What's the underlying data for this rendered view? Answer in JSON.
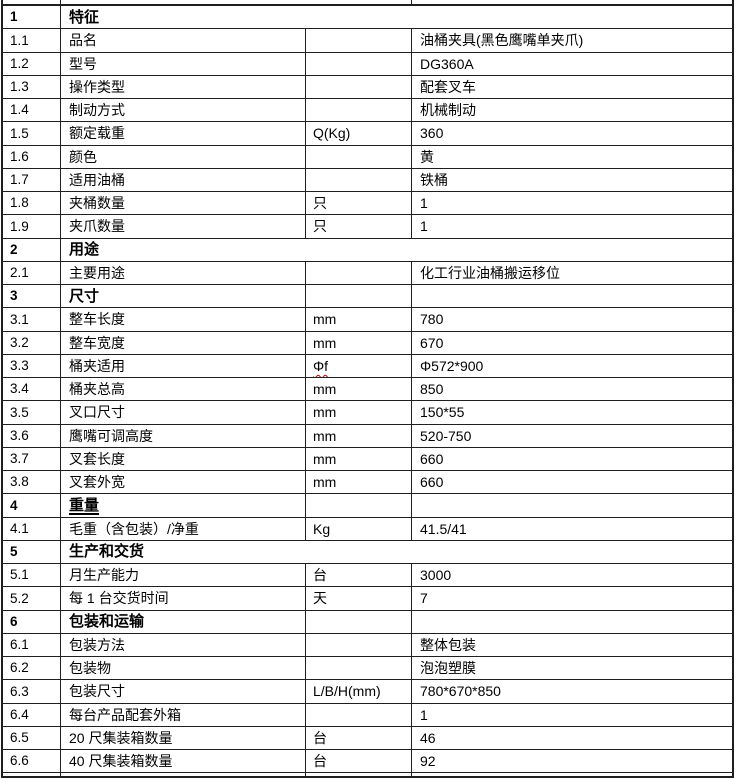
{
  "document": {
    "kind": "product-specification-sheet",
    "language": "zh-CN"
  },
  "styles": {
    "border_color": "#1f1f1f",
    "text_color": "#000000",
    "background": "#ffffff",
    "squiggle_color": "#c00000"
  },
  "table": {
    "columns": [
      "item-number",
      "attribute-name",
      "unit",
      "value"
    ],
    "rows": [
      {
        "no": "1",
        "name": "特征",
        "unit": "",
        "value": "",
        "section": true,
        "merged": true
      },
      {
        "no": "1.1",
        "name": "品名",
        "unit": "",
        "value": "油桶夹具(黑色鹰嘴单夹爪)"
      },
      {
        "no": "1.2",
        "name": "型号",
        "unit": "",
        "value": "DG360A"
      },
      {
        "no": "1.3",
        "name": "操作类型",
        "unit": "",
        "value": "配套叉车"
      },
      {
        "no": "1.4",
        "name": "制动方式",
        "unit": "",
        "value": "机械制动"
      },
      {
        "no": "1.5",
        "name": "额定载重",
        "unit": "Q(Kg)",
        "value": "360"
      },
      {
        "no": "1.6",
        "name": "颜色",
        "unit": "",
        "value": "黄"
      },
      {
        "no": "1.7",
        "name": "适用油桶",
        "unit": "",
        "value": "铁桶"
      },
      {
        "no": "1.8",
        "name": "夹桶数量",
        "unit": "只",
        "value": "1"
      },
      {
        "no": "1.9",
        "name": "夹爪数量",
        "unit": "只",
        "value": "1"
      },
      {
        "no": "2",
        "name": "用途",
        "unit": "",
        "value": "",
        "section": true,
        "merged": true
      },
      {
        "no": "2.1",
        "name": "主要用途",
        "unit": "",
        "value": "化工行业油桶搬运移位"
      },
      {
        "no": "3",
        "name": "尺寸",
        "unit": "",
        "value": "",
        "section": true,
        "merged": false
      },
      {
        "no": "3.1",
        "name": "整车长度",
        "unit": "mm",
        "value": "780"
      },
      {
        "no": "3.2",
        "name": "整车宽度",
        "unit": "mm",
        "value": "670"
      },
      {
        "no": "3.3",
        "name": "桶夹适用",
        "unit": "Φf",
        "value": "Φ572*900",
        "unit_squiggle": true
      },
      {
        "no": "3.4",
        "name": "桶夹总高",
        "unit": "mm",
        "value": "850"
      },
      {
        "no": "3.5",
        "name": "叉口尺寸",
        "unit": "mm",
        "value": "150*55"
      },
      {
        "no": "3.6",
        "name": "鹰嘴可调高度",
        "unit": "mm",
        "value": "520-750"
      },
      {
        "no": "3.7",
        "name": "叉套长度",
        "unit": "mm",
        "value": "660"
      },
      {
        "no": "3.8",
        "name": "叉套外宽",
        "unit": "mm",
        "value": "660"
      },
      {
        "no": "4",
        "name": "重量",
        "unit": "",
        "value": "",
        "section": true,
        "merged": false,
        "underline": true
      },
      {
        "no": "4.1",
        "name": "毛重（含包装）/净重",
        "unit": "Kg",
        "value": "41.5/41"
      },
      {
        "no": "5",
        "name": "生产和交货",
        "unit": "",
        "value": "",
        "section": true,
        "merged": true
      },
      {
        "no": "5.1",
        "name": "月生产能力",
        "unit": "台",
        "value": "3000"
      },
      {
        "no": "5.2",
        "name": "每 1 台交货时间",
        "unit": "天",
        "value": "7"
      },
      {
        "no": "6",
        "name": "包装和运输",
        "unit": "",
        "value": "",
        "section": true,
        "merged": false
      },
      {
        "no": "6.1",
        "name": "包装方法",
        "unit": "",
        "value": "整体包装"
      },
      {
        "no": "6.2",
        "name": "包装物",
        "unit": "",
        "value": "泡泡塑膜"
      },
      {
        "no": "6.3",
        "name": "包装尺寸",
        "unit": "L/B/H(mm)",
        "value": "780*670*850"
      },
      {
        "no": "6.4",
        "name": "每台产品配套外箱",
        "unit": "",
        "value": "1"
      },
      {
        "no": "6.5",
        "name": "20 尺集装箱数量",
        "unit": "台",
        "value": "46"
      },
      {
        "no": "6.6",
        "name": "40 尺集装箱数量",
        "unit": "台",
        "value": "92"
      }
    ]
  }
}
